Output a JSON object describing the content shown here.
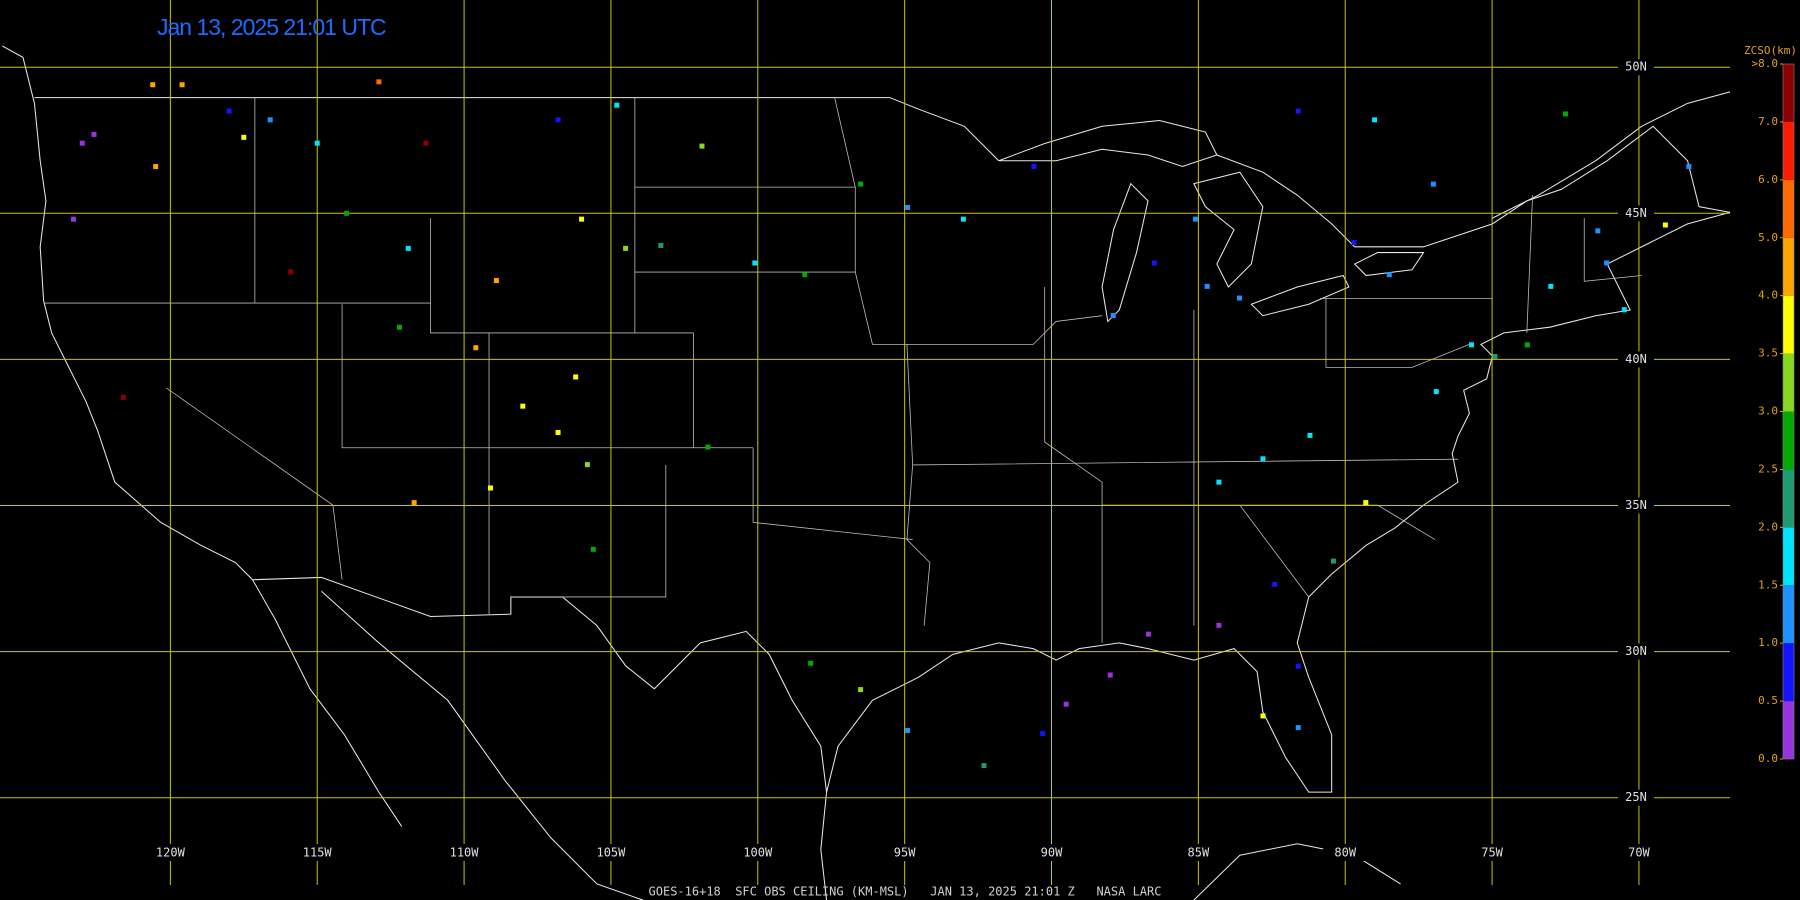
{
  "title": "Jan 13, 2025 21:01 UTC",
  "footer": "GOES-16+18  SFC OBS CEILING (KM-MSL)   JAN 13, 2025 21:01 Z   NASA LARC",
  "map": {
    "lonlim": [
      -125.8,
      -66.9
    ],
    "latlim": [
      21.5,
      52.3
    ],
    "grid_color": "#c8c800",
    "lon_lines": [
      {
        "value": -120,
        "label": "120W"
      },
      {
        "value": -115,
        "label": "115W"
      },
      {
        "value": -110,
        "label": "110W"
      },
      {
        "value": -105,
        "label": "105W"
      },
      {
        "value": -100,
        "label": "100W"
      },
      {
        "value": -95,
        "label": "95W"
      },
      {
        "value": -90,
        "label": "90W"
      },
      {
        "value": -85,
        "label": "85W"
      },
      {
        "value": -80,
        "label": "80W"
      },
      {
        "value": -75,
        "label": "75W"
      },
      {
        "value": -70,
        "label": "70W"
      }
    ],
    "lat_lines": [
      {
        "value": 50,
        "label": "50N"
      },
      {
        "value": 45,
        "label": "45N"
      },
      {
        "value": 40,
        "label": "40N"
      },
      {
        "value": 35,
        "label": "35N"
      },
      {
        "value": 30,
        "label": "30N"
      },
      {
        "value": 25,
        "label": "25N"
      }
    ]
  },
  "legend": {
    "title": "ZCSO(km)",
    "ticks": [
      {
        "value": 0,
        "label": "0.0"
      },
      0.5,
      {
        "value": 1,
        "label": "1.0"
      },
      1.5,
      {
        "value": 2,
        "label": "2.0"
      },
      2.5,
      {
        "value": 3,
        "label": "3.0"
      },
      3.5,
      {
        "value": 4,
        "label": "4.0"
      },
      {
        "value": 5,
        "label": "5.0"
      },
      {
        "value": 6,
        "label": "6.0"
      },
      {
        "value": 7,
        "label": "7.0"
      },
      {
        "value": 8,
        "label": ">8.0"
      }
    ],
    "colors": [
      "#9933dd",
      "#1414ff",
      "#1e90ff",
      "#00e5ff",
      "#209a70",
      "#00aa00",
      "#88d822",
      "#ffff00",
      "#ffa500",
      "#ff6a00",
      "#ff1a00",
      "#8b0000"
    ]
  },
  "stations": [
    {
      "lon": -120.6,
      "lat": 49.4,
      "ceiling": 4.5
    },
    {
      "lon": -119.6,
      "lat": 49.4,
      "ceiling": 4.5
    },
    {
      "lon": -112.9,
      "lat": 49.5,
      "ceiling": 5.5
    },
    {
      "lon": -120.5,
      "lat": 46.6,
      "ceiling": 4.8
    },
    {
      "lon": -121.6,
      "lat": 38.7,
      "ceiling": 7.5
    },
    {
      "lon": -111.3,
      "lat": 47.4,
      "ceiling": 7.2
    },
    {
      "lon": -115.9,
      "lat": 43.0,
      "ceiling": 7.5
    },
    {
      "lon": -117.5,
      "lat": 47.6,
      "ceiling": 3.8
    },
    {
      "lon": -123.0,
      "lat": 47.4,
      "ceiling": 0.3
    },
    {
      "lon": -123.3,
      "lat": 44.8,
      "ceiling": 0.4
    },
    {
      "lon": -122.6,
      "lat": 47.7,
      "ceiling": 0.3
    },
    {
      "lon": -118.0,
      "lat": 48.5,
      "ceiling": 0.8
    },
    {
      "lon": -116.6,
      "lat": 48.2,
      "ceiling": 1.2
    },
    {
      "lon": -115.0,
      "lat": 47.4,
      "ceiling": 1.8
    },
    {
      "lon": -114.0,
      "lat": 45.0,
      "ceiling": 2.7
    },
    {
      "lon": -111.9,
      "lat": 43.8,
      "ceiling": 1.8
    },
    {
      "lon": -112.2,
      "lat": 41.1,
      "ceiling": 2.7
    },
    {
      "lon": -108.9,
      "lat": 42.7,
      "ceiling": 4.5
    },
    {
      "lon": -109.6,
      "lat": 40.4,
      "ceiling": 4.6
    },
    {
      "lon": -106.2,
      "lat": 39.4,
      "ceiling": 3.8
    },
    {
      "lon": -108.0,
      "lat": 38.4,
      "ceiling": 3.9
    },
    {
      "lon": -106.8,
      "lat": 37.5,
      "ceiling": 3.8
    },
    {
      "lon": -111.7,
      "lat": 35.1,
      "ceiling": 4.2
    },
    {
      "lon": -109.1,
      "lat": 35.6,
      "ceiling": 3.8
    },
    {
      "lon": -105.8,
      "lat": 36.4,
      "ceiling": 3.2
    },
    {
      "lon": -105.6,
      "lat": 33.5,
      "ceiling": 2.7
    },
    {
      "lon": -106.8,
      "lat": 48.2,
      "ceiling": 0.8
    },
    {
      "lon": -104.8,
      "lat": 48.7,
      "ceiling": 1.8
    },
    {
      "lon": -106.0,
      "lat": 44.8,
      "ceiling": 3.8
    },
    {
      "lon": -104.5,
      "lat": 43.8,
      "ceiling": 3.2
    },
    {
      "lon": -103.3,
      "lat": 43.9,
      "ceiling": 2.2
    },
    {
      "lon": -101.9,
      "lat": 47.3,
      "ceiling": 3.2
    },
    {
      "lon": -100.1,
      "lat": 43.3,
      "ceiling": 1.8
    },
    {
      "lon": -101.7,
      "lat": 37.0,
      "ceiling": 2.7
    },
    {
      "lon": -98.2,
      "lat": 29.6,
      "ceiling": 2.7
    },
    {
      "lon": -96.5,
      "lat": 28.7,
      "ceiling": 3.2
    },
    {
      "lon": -94.9,
      "lat": 27.3,
      "ceiling": 1.2
    },
    {
      "lon": -92.3,
      "lat": 26.1,
      "ceiling": 2.2
    },
    {
      "lon": -90.3,
      "lat": 27.2,
      "ceiling": 0.8
    },
    {
      "lon": -89.5,
      "lat": 28.2,
      "ceiling": 0.4
    },
    {
      "lon": -88.0,
      "lat": 29.2,
      "ceiling": 0.4
    },
    {
      "lon": -86.7,
      "lat": 30.6,
      "ceiling": 0.3
    },
    {
      "lon": -84.3,
      "lat": 30.9,
      "ceiling": 0.4
    },
    {
      "lon": -82.8,
      "lat": 27.8,
      "ceiling": 3.8
    },
    {
      "lon": -81.6,
      "lat": 29.5,
      "ceiling": 0.8
    },
    {
      "lon": -81.6,
      "lat": 27.4,
      "ceiling": 1.2
    },
    {
      "lon": -82.4,
      "lat": 32.3,
      "ceiling": 0.9
    },
    {
      "lon": -80.4,
      "lat": 33.1,
      "ceiling": 2.2
    },
    {
      "lon": -79.3,
      "lat": 35.1,
      "ceiling": 3.9
    },
    {
      "lon": -82.8,
      "lat": 36.6,
      "ceiling": 1.8
    },
    {
      "lon": -84.3,
      "lat": 35.8,
      "ceiling": 1.8
    },
    {
      "lon": -81.2,
      "lat": 37.4,
      "ceiling": 1.8
    },
    {
      "lon": -75.7,
      "lat": 40.5,
      "ceiling": 1.9
    },
    {
      "lon": -76.9,
      "lat": 38.9,
      "ceiling": 1.8
    },
    {
      "lon": -74.9,
      "lat": 40.1,
      "ceiling": 2.2
    },
    {
      "lon": -73.0,
      "lat": 42.5,
      "ceiling": 1.8
    },
    {
      "lon": -71.1,
      "lat": 43.3,
      "ceiling": 1.2
    },
    {
      "lon": -69.1,
      "lat": 44.6,
      "ceiling": 3.8
    },
    {
      "lon": -68.3,
      "lat": 46.6,
      "ceiling": 1.2
    },
    {
      "lon": -71.4,
      "lat": 44.4,
      "ceiling": 1.2
    },
    {
      "lon": -78.5,
      "lat": 42.9,
      "ceiling": 1.2
    },
    {
      "lon": -79.7,
      "lat": 44.0,
      "ceiling": 0.8
    },
    {
      "lon": -81.6,
      "lat": 48.5,
      "ceiling": 0.8
    },
    {
      "lon": -79.0,
      "lat": 48.2,
      "ceiling": 1.8
    },
    {
      "lon": -85.1,
      "lat": 44.8,
      "ceiling": 1.2
    },
    {
      "lon": -84.7,
      "lat": 42.5,
      "ceiling": 1.2
    },
    {
      "lon": -86.5,
      "lat": 43.3,
      "ceiling": 0.8
    },
    {
      "lon": -83.6,
      "lat": 42.1,
      "ceiling": 1.1
    },
    {
      "lon": -87.9,
      "lat": 41.5,
      "ceiling": 1.2
    },
    {
      "lon": -90.6,
      "lat": 46.6,
      "ceiling": 0.8
    },
    {
      "lon": -93.0,
      "lat": 44.8,
      "ceiling": 1.8
    },
    {
      "lon": -94.9,
      "lat": 45.2,
      "ceiling": 1.2
    },
    {
      "lon": -96.5,
      "lat": 46.0,
      "ceiling": 2.7
    },
    {
      "lon": -98.4,
      "lat": 42.9,
      "ceiling": 2.7
    },
    {
      "lon": -73.8,
      "lat": 40.5,
      "ceiling": 2.7
    },
    {
      "lon": -72.5,
      "lat": 48.4,
      "ceiling": 2.7
    },
    {
      "lon": -70.5,
      "lat": 41.7,
      "ceiling": 1.8
    },
    {
      "lon": -77.0,
      "lat": 46.0,
      "ceiling": 1.2
    }
  ]
}
